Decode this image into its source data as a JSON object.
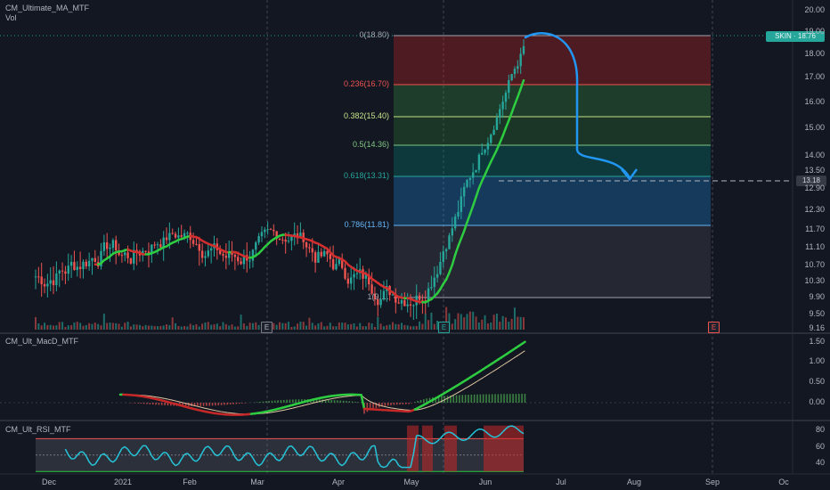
{
  "chart_data": [
    {
      "type": "candlestick",
      "panel": "price",
      "indicator_title": "CM_Ultimate_MA_MTF",
      "volume_label": "Vol",
      "last_price_label": "SKIN",
      "last_price_value": "18.76",
      "target_price_label": "13.18",
      "y_ticks": [
        "20.00",
        "19.00",
        "18.00",
        "17.00",
        "16.00",
        "15.00",
        "14.00",
        "13.50",
        "12.90",
        "12.30",
        "11.70",
        "11.10",
        "10.70",
        "10.30",
        "9.90",
        "9.50",
        "9.16"
      ],
      "x_ticks": [
        "Dec",
        "2021",
        "Feb",
        "Mar",
        "Apr",
        "May",
        "Jun",
        "Jul",
        "Aug",
        "Sep",
        "Oc"
      ],
      "fib_levels": [
        {
          "label": "0(18.80)",
          "value": 18.8,
          "color": "#a3a6af"
        },
        {
          "label": "0.236(16.70)",
          "value": 16.7,
          "color": "#ef5350"
        },
        {
          "label": "0.382(15.40)",
          "value": 15.4,
          "color": "#c6e48b"
        },
        {
          "label": "0.5(14.36)",
          "value": 14.36,
          "color": "#81c784"
        },
        {
          "label": "0.618(13.31)",
          "value": 13.31,
          "color": "#26a69a"
        },
        {
          "label": "0.786(11.81)",
          "value": 11.81,
          "color": "#64b5f6"
        },
        {
          "label": "1(9.…",
          "value": 9.91,
          "color": "#a3a6af"
        }
      ],
      "earnings_markers": [
        "E",
        "E",
        "E"
      ],
      "colors": {
        "up": "#26a69a",
        "down": "#ef5350",
        "ma_up": "#2ecc40",
        "ma_down": "#d32f2f",
        "drawing": "#2196f3"
      }
    },
    {
      "type": "line",
      "panel": "macd",
      "indicator_title": "CM_Ult_MacD_MTF",
      "y_ticks": [
        "1.50",
        "1.00",
        "0.50",
        "0.00"
      ]
    },
    {
      "type": "line",
      "panel": "rsi",
      "indicator_title": "CM_Ult_RSI_MTF",
      "y_ticks": [
        "80",
        "60",
        "40"
      ]
    }
  ]
}
